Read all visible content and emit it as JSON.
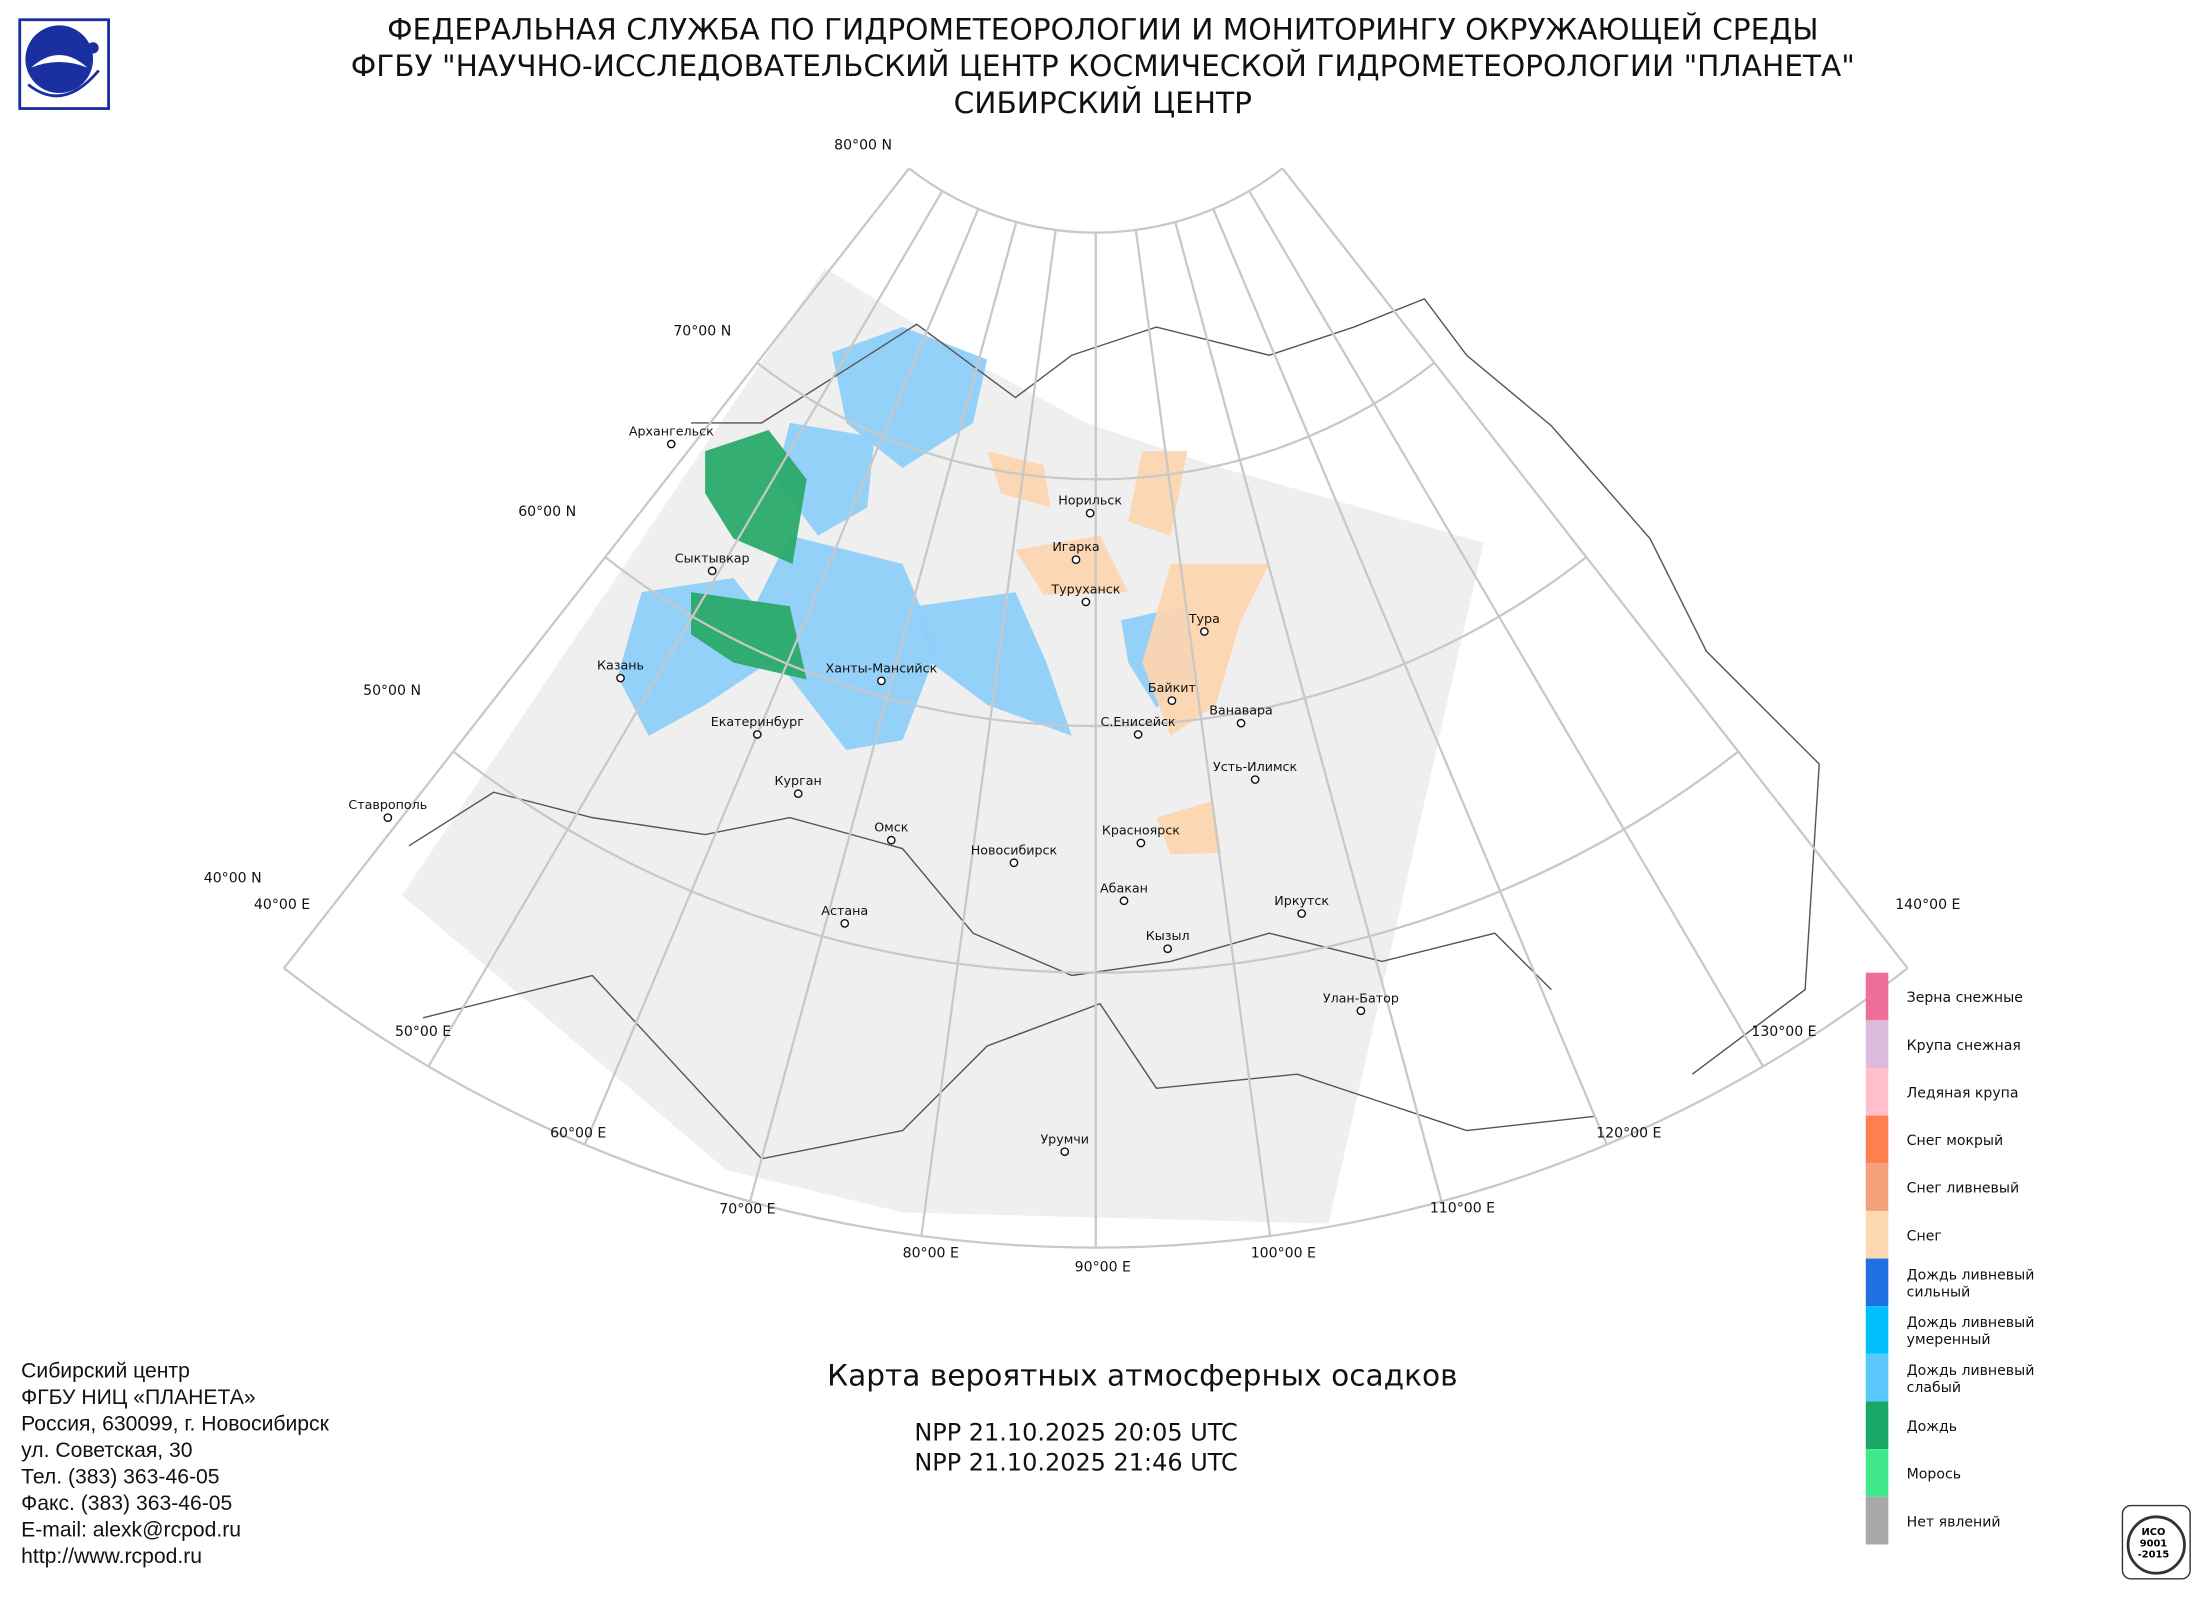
{
  "header": {
    "lines": [
      "ФЕДЕРАЛЬНАЯ СЛУЖБА ПО ГИДРОМЕТЕОРОЛОГИИ И МОНИТОРИНГУ ОКРУЖАЮЩЕЙ СРЕДЫ",
      "ФГБУ \"НАУЧНО-ИССЛЕДОВАТЕЛЬСКИЙ ЦЕНТР КОСМИЧЕСКОЙ ГИДРОМЕТЕОРОЛОГИИ \"ПЛАНЕТА\"",
      "СИБИРСКИЙ ЦЕНТР"
    ]
  },
  "map": {
    "lat_labels": [
      "80°00 N",
      "70°00 N",
      "60°00 N",
      "50°00 N",
      "40°00 N"
    ],
    "lon_labels": [
      "40°00 E",
      "50°00 E",
      "60°00 E",
      "70°00 E",
      "80°00 E",
      "90°00 E",
      "100°00 E",
      "110°00 E",
      "120°00 E",
      "130°00 E",
      "140°00 E"
    ],
    "cities": [
      "Архангельск",
      "Сыктывкар",
      "Казань",
      "Екатеринбург",
      "Курган",
      "Ханты-Мансийск",
      "Ставрополь",
      "Омск",
      "Астана",
      "Новосибирск",
      "Норильск",
      "Игарка",
      "Туруханск",
      "Тура",
      "Байкит",
      "Ванавара",
      "С.Енисейск",
      "Усть-Илимск",
      "Красноярск",
      "Абакан",
      "Кызыл",
      "Иркутск",
      "Улан-Батор",
      "Урумчи"
    ],
    "title": "Карта вероятных атмосферных осадков",
    "passes": [
      "NPP 21.10.2025  20:05 UTC",
      "NPP 21.10.2025  21:46 UTC"
    ]
  },
  "legend": {
    "items": [
      {
        "lines": [
          "Зерна снежные"
        ],
        "color": "#f06e9c"
      },
      {
        "lines": [
          "Крупа снежная"
        ],
        "color": "#dcbcdc"
      },
      {
        "lines": [
          "Ледяная крупа"
        ],
        "color": "#ffc0cb"
      },
      {
        "lines": [
          "Снег мокрый"
        ],
        "color": "#ff7f50"
      },
      {
        "lines": [
          "Снег ливневый"
        ],
        "color": "#f4a07a"
      },
      {
        "lines": [
          "Снег"
        ],
        "color": "#fcd9b3"
      },
      {
        "lines": [
          "Дождь ливневый",
          "сильный"
        ],
        "color": "#1f6fe0"
      },
      {
        "lines": [
          "Дождь ливневый",
          "умеренный"
        ],
        "color": "#00bfff"
      },
      {
        "lines": [
          "Дождь ливневый",
          "слабый"
        ],
        "color": "#5ac8fa"
      },
      {
        "lines": [
          "Дождь"
        ],
        "color": "#1aa866"
      },
      {
        "lines": [
          "Морось"
        ],
        "color": "#40e88c"
      },
      {
        "lines": [
          "Нет явлений"
        ],
        "color": "#a9a9a9"
      }
    ]
  },
  "contact": {
    "lines": [
      "Сибирский центр",
      "ФГБУ НИЦ «ПЛАНЕТА»",
      "Россия, 630099, г. Новосибирск",
      "ул. Советская, 30",
      "Тел. (383) 363-46-05",
      "Факс. (383) 363-46-05",
      "E-mail: alexk@rcpod.ru",
      "http://www.rcpod.ru"
    ]
  },
  "iso_badge": {
    "lines": [
      "ИСО",
      "9001",
      "-2015"
    ]
  }
}
